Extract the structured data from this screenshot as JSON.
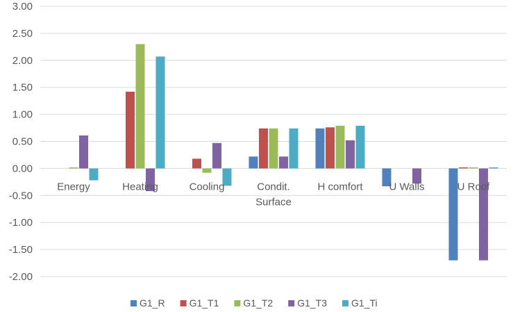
{
  "chart_data": {
    "type": "bar",
    "title": "",
    "xlabel": "",
    "ylabel": "",
    "ylim": [
      -2.0,
      3.0
    ],
    "ytick_step": 0.5,
    "yticks": [
      "3.00",
      "2.50",
      "2.00",
      "1.50",
      "1.00",
      "0.50",
      "0.00",
      "-0.50",
      "-1.00",
      "-1.50",
      "-2.00"
    ],
    "grid": true,
    "legend_position": "bottom",
    "categories": [
      [
        "Energy"
      ],
      [
        "Heating"
      ],
      [
        "Cooling"
      ],
      [
        "Condit.",
        "Surface"
      ],
      [
        "H comfort"
      ],
      [
        "U Walls"
      ],
      [
        "U Roof"
      ]
    ],
    "series": [
      {
        "name": "G1_R",
        "color": "#4F81BD",
        "values": [
          0,
          0,
          0,
          0.22,
          0.74,
          -0.33,
          -1.7
        ]
      },
      {
        "name": "G1_T1",
        "color": "#C0504D",
        "values": [
          0,
          1.42,
          0.18,
          0.74,
          0.76,
          0,
          0.02
        ]
      },
      {
        "name": "G1_T2",
        "color": "#9BBB59",
        "values": [
          0.02,
          2.3,
          -0.08,
          0.74,
          0.79,
          0,
          0.02
        ]
      },
      {
        "name": "G1_T3",
        "color": "#8064A2",
        "values": [
          0.61,
          -0.42,
          0.47,
          0.22,
          0.52,
          -0.28,
          -1.7
        ]
      },
      {
        "name": "G1_Ti",
        "color": "#4BACC6",
        "values": [
          -0.22,
          2.07,
          -0.32,
          0.74,
          0.79,
          0,
          0.02
        ]
      }
    ]
  }
}
